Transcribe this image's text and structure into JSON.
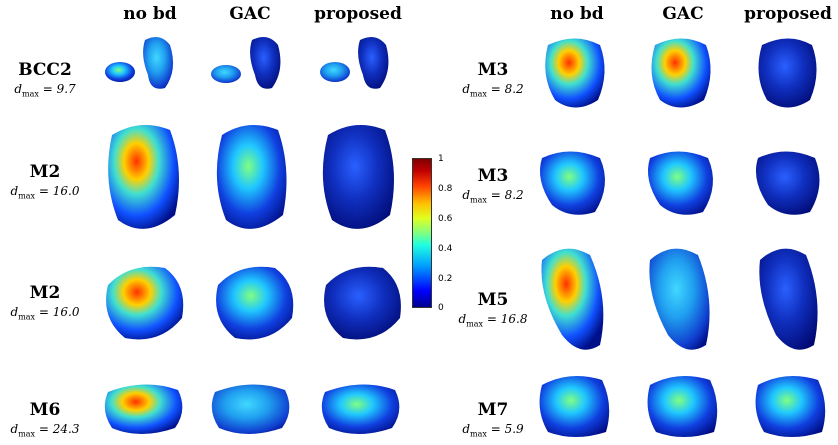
{
  "column_headers_left": [
    "no bd",
    "GAC",
    "proposed"
  ],
  "column_headers_right": [
    "no bd",
    "GAC",
    "proposed"
  ],
  "rows_left": [
    {
      "name": "BCC2",
      "dmax": "= 9.7"
    },
    {
      "name": "M2",
      "dmax": "= 16.0"
    },
    {
      "name": "M2",
      "dmax": "= 16.0"
    },
    {
      "name": "M6",
      "dmax": "= 24.3"
    }
  ],
  "rows_right": [
    {
      "name": "M3",
      "dmax": "= 8.2"
    },
    {
      "name": "M3",
      "dmax": "= 8.2"
    },
    {
      "name": "M5",
      "dmax": "= 16.8"
    },
    {
      "name": "M7",
      "dmax": "= 5.9"
    }
  ],
  "dmax_symbol": "d",
  "dmax_sub": "max",
  "colorbar": {
    "ticks": [
      "1",
      "0.8",
      "0.6",
      "0.4",
      "0.2",
      "0"
    ],
    "colormap": "jet"
  }
}
